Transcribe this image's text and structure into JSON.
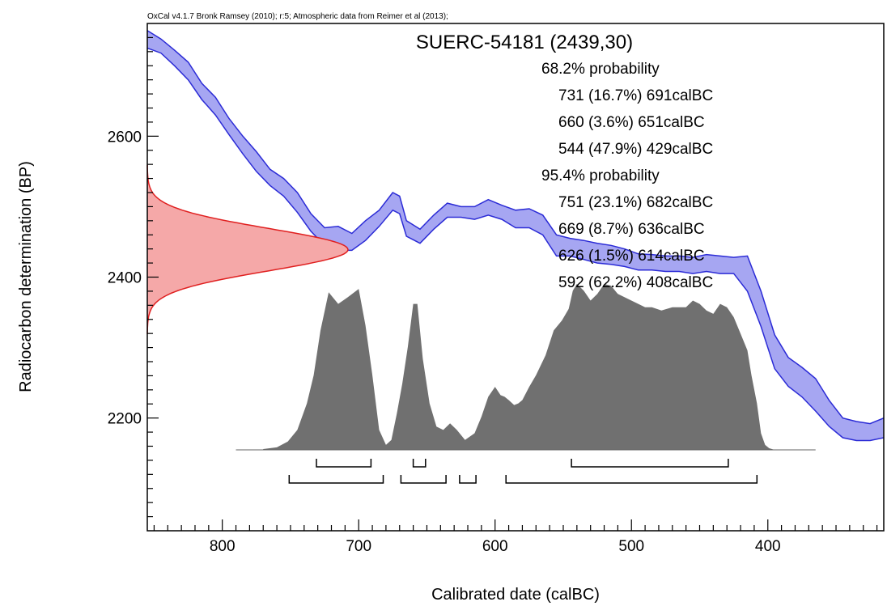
{
  "chart_data": {
    "type": "area",
    "header_note": "OxCal v4.1.7 Bronk Ramsey (2010); r:5; Atmospheric data from Reimer et al (2013);",
    "title": "SUERC-54181 (2439,30)",
    "xlabel": "Calibrated date (calBC)",
    "ylabel": "Radiocarbon determination (BP)",
    "x_reversed": true,
    "xlim": [
      855,
      315
    ],
    "ylim": [
      2040,
      2760
    ],
    "x_ticks": [
      800,
      700,
      600,
      500,
      400
    ],
    "y_ticks": [
      2200,
      2400,
      2600
    ],
    "x_minor_step": 10,
    "y_minor_step": 20,
    "colors": {
      "curve_fill": "#a6a6f2",
      "curve_line": "#2b2bd6",
      "measurement_fill": "#f5a8a8",
      "measurement_line": "#e02020",
      "posterior_fill": "#707070"
    },
    "ranges_68": {
      "label": "68.2% probability",
      "entries": [
        {
          "text": "731 (16.7%) 691calBC",
          "from": 731,
          "to": 691
        },
        {
          "text": "660 (3.6%) 651calBC",
          "from": 660,
          "to": 651
        },
        {
          "text": "544 (47.9%) 429calBC",
          "from": 544,
          "to": 429
        }
      ]
    },
    "ranges_95": {
      "label": "95.4% probability",
      "entries": [
        {
          "text": "751 (23.1%) 682calBC",
          "from": 751,
          "to": 682
        },
        {
          "text": "669 (8.7%) 636calBC",
          "from": 669,
          "to": 636
        },
        {
          "text": "626 (1.5%) 614calBC",
          "from": 626,
          "to": 614
        },
        {
          "text": "592 (62.2%) 408calBC",
          "from": 592,
          "to": 408
        }
      ]
    },
    "measurement": {
      "mean": 2439,
      "sigma": 30
    },
    "calibration_curve": {
      "x": [
        855,
        845,
        835,
        825,
        815,
        805,
        795,
        785,
        775,
        765,
        755,
        745,
        735,
        725,
        715,
        705,
        695,
        685,
        675,
        670,
        665,
        655,
        645,
        635,
        625,
        615,
        605,
        595,
        585,
        575,
        565,
        555,
        545,
        535,
        525,
        515,
        505,
        495,
        485,
        475,
        465,
        455,
        445,
        435,
        425,
        415,
        405,
        395,
        385,
        375,
        365,
        355,
        345,
        335,
        325,
        315
      ],
      "upper": [
        2750,
        2738,
        2722,
        2705,
        2675,
        2655,
        2625,
        2600,
        2578,
        2553,
        2540,
        2520,
        2490,
        2470,
        2472,
        2462,
        2480,
        2495,
        2520,
        2515,
        2480,
        2468,
        2488,
        2505,
        2500,
        2500,
        2510,
        2502,
        2495,
        2497,
        2488,
        2460,
        2455,
        2452,
        2448,
        2445,
        2440,
        2433,
        2432,
        2430,
        2430,
        2428,
        2432,
        2430,
        2428,
        2430,
        2380,
        2318,
        2286,
        2272,
        2256,
        2225,
        2200,
        2195,
        2192,
        2200
      ],
      "lower": [
        2725,
        2718,
        2700,
        2680,
        2652,
        2630,
        2602,
        2575,
        2550,
        2530,
        2515,
        2492,
        2465,
        2445,
        2438,
        2438,
        2452,
        2472,
        2495,
        2490,
        2458,
        2448,
        2468,
        2485,
        2485,
        2482,
        2488,
        2482,
        2470,
        2470,
        2460,
        2430,
        2430,
        2425,
        2420,
        2418,
        2415,
        2410,
        2410,
        2408,
        2408,
        2405,
        2408,
        2405,
        2405,
        2380,
        2330,
        2270,
        2245,
        2230,
        2210,
        2188,
        2172,
        2168,
        2168,
        2172
      ]
    },
    "posterior": {
      "x": [
        770,
        760,
        752,
        745,
        738,
        733,
        728,
        722,
        715,
        708,
        700,
        695,
        690,
        685,
        680,
        676,
        672,
        668,
        664,
        660,
        657,
        653,
        648,
        643,
        638,
        633,
        628,
        622,
        615,
        610,
        605,
        600,
        596,
        593,
        590,
        586,
        583,
        580,
        575,
        570,
        563,
        557,
        551,
        546,
        543,
        540,
        535,
        530,
        525,
        520,
        515,
        510,
        505,
        500,
        495,
        490,
        485,
        478,
        470,
        465,
        460,
        455,
        450,
        445,
        440,
        435,
        430,
        425,
        420,
        415,
        412,
        408,
        405,
        402,
        399,
        395,
        390,
        385,
        380,
        370,
        365
      ],
      "density": [
        0.005,
        0.015,
        0.05,
        0.12,
        0.28,
        0.45,
        0.72,
        0.95,
        0.88,
        0.92,
        0.97,
        0.75,
        0.45,
        0.12,
        0.03,
        0.06,
        0.22,
        0.4,
        0.62,
        0.88,
        0.88,
        0.55,
        0.28,
        0.14,
        0.12,
        0.16,
        0.12,
        0.06,
        0.1,
        0.2,
        0.32,
        0.38,
        0.33,
        0.32,
        0.3,
        0.27,
        0.28,
        0.3,
        0.38,
        0.45,
        0.57,
        0.72,
        0.78,
        0.85,
        0.96,
        1.0,
        0.96,
        0.9,
        0.94,
        1.0,
        0.99,
        0.94,
        0.92,
        0.9,
        0.88,
        0.86,
        0.86,
        0.84,
        0.86,
        0.86,
        0.86,
        0.9,
        0.88,
        0.84,
        0.82,
        0.88,
        0.86,
        0.8,
        0.7,
        0.6,
        0.45,
        0.28,
        0.1,
        0.03,
        0.01,
        0,
        0,
        0,
        0,
        0,
        0
      ]
    }
  }
}
